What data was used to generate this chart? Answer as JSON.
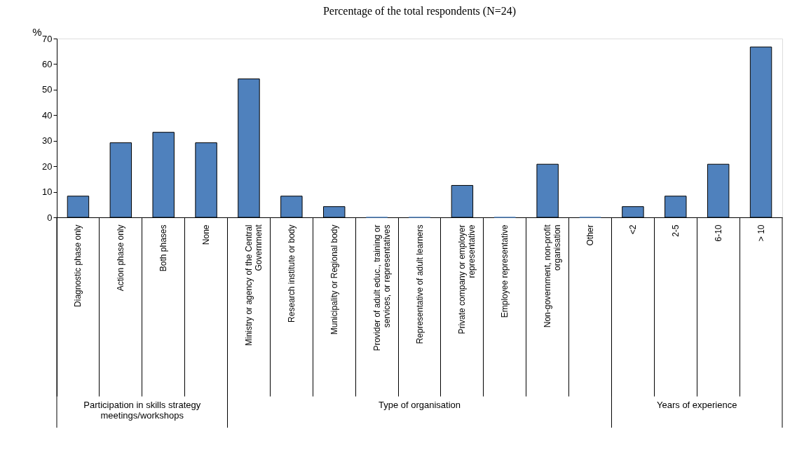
{
  "chart_data": {
    "type": "bar",
    "title": "Percentage of the total respondents (N=24)",
    "ylabel": "%",
    "categories": [
      "Diagnostic phase only",
      "Action phase only",
      "Both phases",
      "None",
      "Ministry or agency of the Central Government",
      "Research institute or body",
      "Municipality or Regional body",
      "Provider of adult educ., training or services, or representatives",
      "Representative of adult learners",
      "Private company or employer representative",
      "Employee representative",
      "Non-government, non-profit organisation",
      "Other",
      "<2",
      "2-5",
      "6-10",
      "> 10"
    ],
    "values": [
      8.3,
      29.2,
      33.3,
      29.2,
      54.2,
      8.3,
      4.2,
      0,
      0,
      12.5,
      0,
      20.8,
      0,
      4.2,
      8.3,
      20.8,
      66.7
    ],
    "color": "#4f81bd",
    "ylim": [
      0,
      70
    ],
    "yticks": [
      0,
      10,
      20,
      30,
      40,
      50,
      60,
      70
    ],
    "grid": false,
    "annotations": [
      "Participation in skills strategy meetings/workshops",
      "Type of organisation",
      "Years of experience"
    ]
  }
}
